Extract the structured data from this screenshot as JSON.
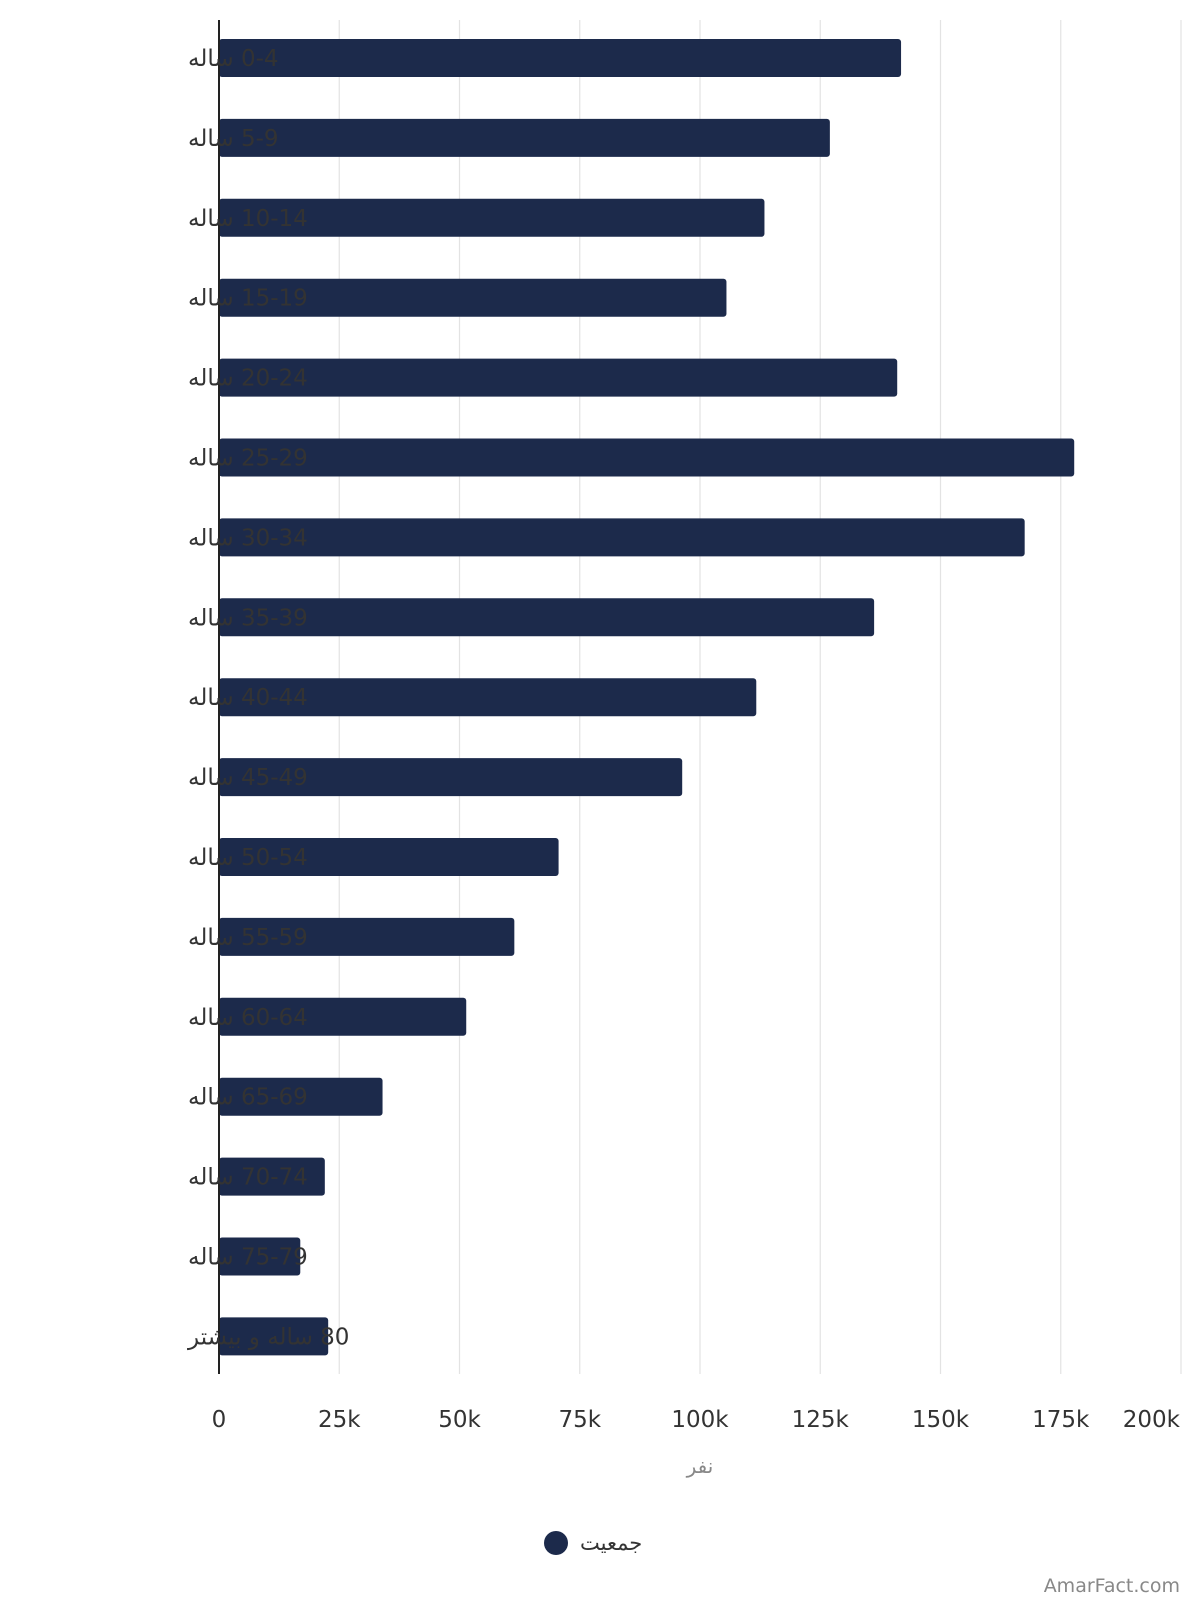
{
  "chart_data": {
    "type": "bar",
    "orientation": "horizontal",
    "categories": [
      "0-4 ساله",
      "5-9 ساله",
      "10-14 ساله",
      "15-19 ساله",
      "20-24 ساله",
      "25-29 ساله",
      "30-34 ساله",
      "35-39 ساله",
      "40-44 ساله",
      "45-49 ساله",
      "50-54 ساله",
      "55-59 ساله",
      "60-64 ساله",
      "65-69 ساله",
      "70-74 ساله",
      "75-79 ساله",
      "80 ساله و بیشتر"
    ],
    "series": [
      {
        "name": "جمعیت",
        "color": "#1c2a4b",
        "values": [
          141800,
          127000,
          113400,
          105500,
          141000,
          177800,
          167500,
          136200,
          111700,
          96300,
          70600,
          61400,
          51400,
          34000,
          22000,
          16900,
          22700
        ]
      }
    ],
    "xlim": [
      0,
      200000
    ],
    "xticks": [
      "0",
      "25k",
      "50k",
      "75k",
      "100k",
      "125k",
      "150k",
      "175k",
      "200k"
    ],
    "xlabel": "نفر",
    "ylabel": "",
    "title": "",
    "grid": "vertical",
    "legend_position": "bottom-center"
  },
  "watermark": "AmarFact.com",
  "colors": {
    "bar": "#1c2a4b",
    "grid": "#e3e3e3",
    "axis": "#222222",
    "text": "#333333",
    "muted": "#888888"
  }
}
